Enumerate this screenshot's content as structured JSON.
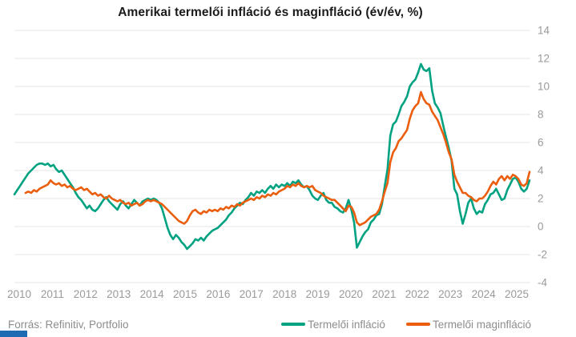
{
  "title": "Amerikai termelői infláció és maginfláció (év/év, %)",
  "source": "Forrás: Refinitiv, Portfolio",
  "colors": {
    "series_green": "#00a282",
    "series_orange": "#ea5e0e",
    "gridline": "#e4e4e4",
    "axis_text": "#9a9a9a",
    "title_text": "#1a1a1a",
    "footer_text": "#8d8d8d",
    "brand_bar_blue": "#1e6bb4",
    "background": "#ffffff"
  },
  "legend": {
    "item1": "Termelői infláció",
    "item2": "Termelői maginfláció"
  },
  "chart_data": {
    "type": "line",
    "title": "Amerikai termelői infláció és maginfláció (év/év, %)",
    "frequency": "monthly",
    "x_start": "2010-01",
    "x_end": "2025-06",
    "x_tick_labels": [
      "2010",
      "2011",
      "2012",
      "2013",
      "2014",
      "2015",
      "2016",
      "2017",
      "2018",
      "2019",
      "2020",
      "2021",
      "2022",
      "2023",
      "2024",
      "2025"
    ],
    "y_ticks": [
      14,
      12,
      10,
      8,
      6,
      4,
      2,
      0,
      -2,
      -4
    ],
    "ylim": [
      -4,
      14
    ],
    "grid": "horizontal",
    "legend_position": "bottom-right",
    "series": [
      {
        "name": "Termelői infláció",
        "color": "#00a282",
        "values": [
          2.3,
          2.6,
          2.9,
          3.2,
          3.5,
          3.8,
          4.0,
          4.2,
          4.4,
          4.5,
          4.5,
          4.4,
          4.5,
          4.3,
          4.4,
          4.1,
          3.9,
          4.0,
          3.7,
          3.4,
          3.1,
          2.8,
          2.4,
          2.1,
          1.9,
          1.6,
          1.3,
          1.5,
          1.2,
          1.1,
          1.3,
          1.6,
          1.9,
          2.1,
          1.8,
          1.6,
          1.4,
          1.2,
          1.6,
          1.8,
          1.5,
          1.3,
          1.6,
          1.9,
          1.7,
          1.5,
          1.8,
          1.9,
          2.0,
          1.9,
          2.0,
          1.9,
          1.7,
          1.3,
          0.6,
          -0.1,
          -0.6,
          -0.9,
          -0.6,
          -0.8,
          -1.1,
          -1.3,
          -1.6,
          -1.4,
          -1.2,
          -0.9,
          -1.0,
          -0.8,
          -1.0,
          -0.7,
          -0.5,
          -0.3,
          -0.2,
          -0.1,
          0.1,
          0.3,
          0.5,
          0.8,
          1.0,
          1.3,
          1.5,
          1.7,
          1.6,
          1.9,
          2.1,
          2.4,
          2.2,
          2.5,
          2.4,
          2.6,
          2.4,
          2.7,
          2.9,
          2.7,
          3.0,
          2.8,
          3.0,
          2.9,
          3.1,
          2.9,
          3.2,
          3.1,
          3.3,
          3.0,
          2.8,
          2.9,
          2.6,
          2.2,
          2.0,
          1.9,
          2.2,
          2.4,
          1.9,
          1.7,
          1.7,
          1.4,
          1.3,
          1.1,
          1.0,
          1.3,
          1.9,
          1.2,
          0.3,
          -1.5,
          -1.1,
          -0.7,
          -0.4,
          -0.2,
          0.3,
          0.5,
          0.8,
          0.9,
          1.6,
          2.9,
          4.1,
          6.5,
          7.3,
          7.5,
          8.0,
          8.6,
          8.9,
          9.3,
          10.0,
          10.3,
          10.5,
          11.0,
          11.6,
          11.2,
          11.1,
          11.3,
          9.7,
          8.8,
          8.5,
          8.1,
          7.2,
          6.4,
          5.6,
          4.7,
          2.7,
          2.3,
          1.1,
          0.2,
          0.9,
          1.7,
          2.0,
          1.3,
          0.9,
          1.1,
          1.0,
          1.6,
          1.9,
          2.3,
          2.4,
          2.7,
          2.3,
          1.9,
          2.0,
          2.6,
          3.0,
          3.4,
          3.5,
          3.2,
          2.7,
          2.5,
          2.7,
          3.3
        ]
      },
      {
        "name": "Termelői maginfláció",
        "color": "#ea5e0e",
        "values": [
          null,
          null,
          null,
          null,
          2.4,
          2.5,
          2.4,
          2.6,
          2.5,
          2.7,
          2.8,
          2.9,
          3.0,
          3.3,
          3.1,
          3.0,
          3.1,
          2.9,
          3.0,
          2.8,
          2.9,
          2.7,
          2.6,
          2.7,
          2.8,
          2.6,
          2.7,
          2.5,
          2.3,
          2.4,
          2.2,
          2.3,
          2.1,
          2.0,
          2.2,
          2.0,
          1.9,
          1.8,
          1.9,
          1.7,
          1.6,
          1.7,
          1.5,
          1.6,
          1.7,
          1.5,
          1.6,
          1.8,
          1.9,
          1.8,
          1.9,
          1.8,
          1.7,
          1.6,
          1.4,
          1.2,
          1.0,
          0.8,
          0.6,
          0.4,
          0.3,
          0.2,
          0.4,
          0.8,
          1.1,
          1.2,
          1.0,
          0.9,
          1.1,
          1.0,
          1.2,
          1.1,
          1.2,
          1.1,
          1.3,
          1.2,
          1.4,
          1.3,
          1.5,
          1.4,
          1.6,
          1.5,
          1.7,
          1.8,
          1.9,
          2.0,
          1.9,
          2.1,
          2.0,
          2.2,
          2.1,
          2.3,
          2.2,
          2.4,
          2.3,
          2.5,
          2.6,
          2.7,
          2.9,
          2.8,
          3.0,
          2.9,
          3.1,
          2.9,
          2.8,
          2.9,
          2.8,
          2.9,
          2.6,
          2.5,
          2.4,
          2.2,
          2.1,
          2.0,
          1.9,
          1.9,
          1.7,
          1.5,
          1.3,
          1.1,
          1.5,
          1.4,
          1.0,
          0.3,
          0.1,
          0.2,
          0.3,
          0.5,
          0.7,
          0.8,
          0.9,
          1.2,
          1.8,
          2.5,
          3.1,
          4.6,
          5.3,
          5.6,
          6.1,
          6.3,
          6.6,
          6.9,
          7.7,
          8.3,
          8.6,
          8.8,
          9.6,
          9.1,
          8.8,
          8.7,
          8.2,
          7.9,
          7.6,
          7.1,
          6.6,
          6.0,
          5.3,
          4.8,
          3.7,
          3.2,
          2.8,
          2.4,
          2.4,
          2.2,
          2.1,
          1.9,
          1.8,
          2.0,
          2.0,
          2.2,
          2.5,
          2.9,
          3.2,
          3.0,
          3.4,
          3.6,
          3.3,
          3.6,
          3.4,
          3.7,
          3.6,
          3.4,
          3.0,
          2.9,
          3.1,
          3.9
        ]
      }
    ]
  }
}
